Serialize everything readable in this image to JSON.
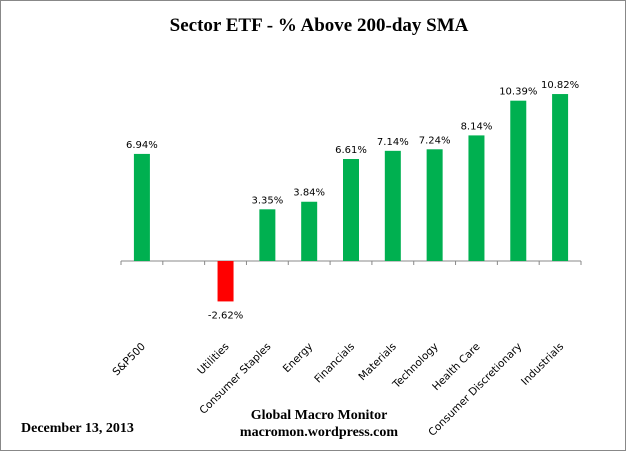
{
  "chart_data": {
    "type": "bar",
    "title": "Sector ETF - % Above 200-day SMA",
    "categories": [
      "S&P500",
      "",
      "Utilities",
      "Consumer Staples",
      "Energy",
      "Financials",
      "Materials",
      "Technology",
      "Health Care",
      "Consumer Discretionary",
      "Industrials"
    ],
    "values": [
      6.94,
      null,
      -2.62,
      3.35,
      3.84,
      6.61,
      7.14,
      7.24,
      8.14,
      10.39,
      10.82
    ],
    "data_labels": [
      "6.94%",
      "",
      "-2.62%",
      "3.35%",
      "3.84%",
      "6.61%",
      "7.14%",
      "7.24%",
      "8.14%",
      "10.39%",
      "10.82%"
    ],
    "xlabel": "",
    "ylabel": "",
    "grid": false,
    "legend": "none",
    "colors": {
      "positive": "#00B050",
      "negative": "#FF0000"
    }
  },
  "footer": {
    "date": "December 13, 2013",
    "source_line1": "Global Macro Monitor",
    "source_line2": "macromon.wordpress.com"
  }
}
